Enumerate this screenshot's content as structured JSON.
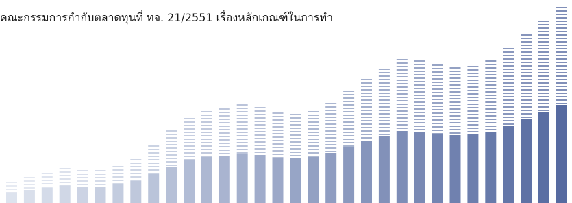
{
  "heading": "คณะกรรมการกำกับตลาดทุนที่ ทจ. 21/2551 เรื่องหลักเกณฑ์ในการทำ"
}
